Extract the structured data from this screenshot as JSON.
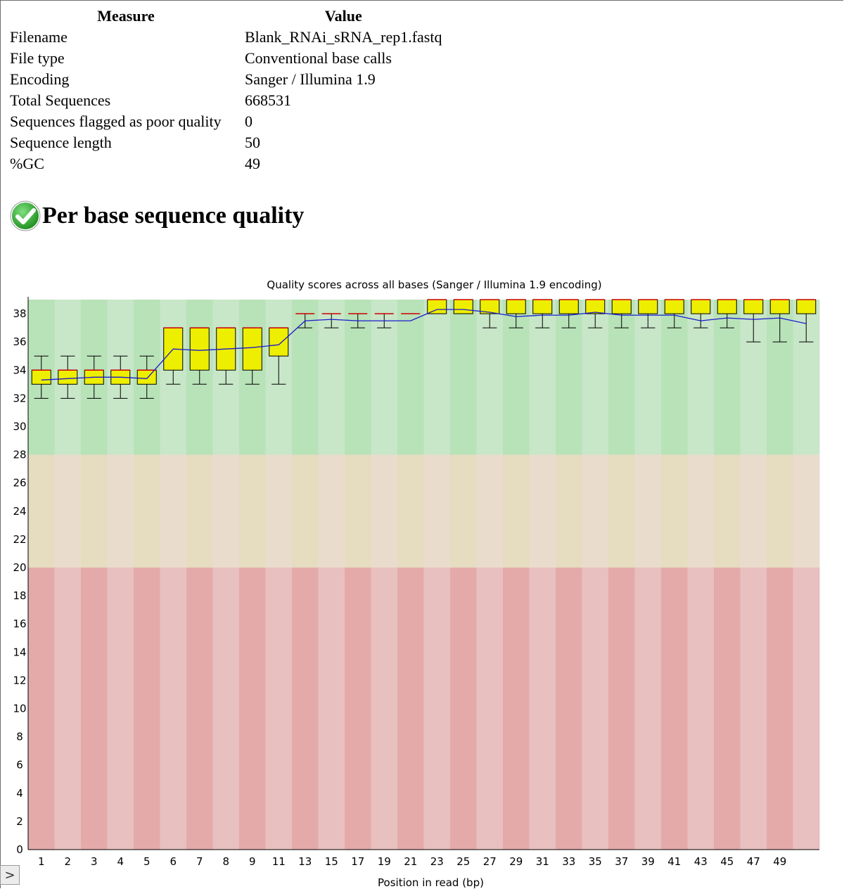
{
  "stats_table": {
    "header": {
      "measure": "Measure",
      "value": "Value"
    },
    "rows": [
      {
        "measure": "Filename",
        "value": "Blank_RNAi_sRNA_rep1.fastq"
      },
      {
        "measure": "File type",
        "value": "Conventional base calls"
      },
      {
        "measure": "Encoding",
        "value": "Sanger / Illumina 1.9"
      },
      {
        "measure": "Total Sequences",
        "value": "668531"
      },
      {
        "measure": "Sequences flagged as poor quality",
        "value": "0"
      },
      {
        "measure": "Sequence length",
        "value": "50"
      },
      {
        "measure": "%GC",
        "value": "49"
      }
    ]
  },
  "section": {
    "title": "Per base sequence quality",
    "status_icon": "check-icon",
    "status_color": "#2fa82f"
  },
  "scroll": {
    "icon": "chevron-right-icon",
    "glyph": ">"
  },
  "chart_data": {
    "type": "boxplot",
    "title": "Quality scores across all bases (Sanger / Illumina 1.9 encoding)",
    "xlabel": "Position in read (bp)",
    "ylabel": "",
    "ylim": [
      0,
      39
    ],
    "yticks": [
      0,
      2,
      4,
      6,
      8,
      10,
      12,
      14,
      16,
      18,
      20,
      22,
      24,
      26,
      28,
      30,
      32,
      34,
      36,
      38
    ],
    "xtick_labels": [
      "1",
      "2",
      "3",
      "4",
      "5",
      "6",
      "7",
      "8",
      "9",
      "11",
      "13",
      "15",
      "17",
      "19",
      "21",
      "23",
      "25",
      "27",
      "29",
      "31",
      "33",
      "35",
      "37",
      "39",
      "41",
      "43",
      "45",
      "47",
      "49"
    ],
    "positions": [
      "1",
      "2",
      "3",
      "4",
      "5",
      "6",
      "7",
      "8",
      "9",
      "10-11",
      "12-13",
      "14-15",
      "16-17",
      "18-19",
      "20-21",
      "22-23",
      "24-25",
      "26-27",
      "28-29",
      "30-31",
      "32-33",
      "34-35",
      "36-37",
      "38-39",
      "40-41",
      "42-43",
      "44-45",
      "46-47",
      "48-49",
      "50"
    ],
    "q1": [
      33,
      33,
      33,
      33,
      33,
      34,
      34,
      34,
      34,
      35,
      38,
      38,
      38,
      38,
      38,
      38,
      38,
      38,
      38,
      38,
      38,
      38,
      38,
      38,
      38,
      38,
      38,
      38,
      38,
      38
    ],
    "median": [
      34,
      34,
      34,
      34,
      34,
      37,
      37,
      37,
      37,
      37,
      38,
      38,
      38,
      38,
      38,
      39,
      39,
      39,
      39,
      39,
      39,
      39,
      39,
      39,
      39,
      39,
      39,
      39,
      39,
      39
    ],
    "q3": [
      34,
      34,
      34,
      34,
      34,
      37,
      37,
      37,
      37,
      37,
      38,
      38,
      38,
      38,
      38,
      39,
      39,
      39,
      39,
      39,
      39,
      39,
      39,
      39,
      39,
      39,
      39,
      39,
      39,
      39
    ],
    "lower_whisker": [
      32,
      32,
      32,
      32,
      32,
      33,
      33,
      33,
      33,
      33,
      37,
      37,
      37,
      37,
      38,
      38,
      38,
      37,
      37,
      37,
      37,
      37,
      37,
      37,
      37,
      37,
      37,
      36,
      36,
      36
    ],
    "upper_whisker": [
      35,
      35,
      35,
      35,
      35,
      37,
      37,
      37,
      37,
      37,
      38,
      38,
      38,
      38,
      38,
      39,
      39,
      39,
      39,
      39,
      39,
      39,
      39,
      39,
      39,
      39,
      39,
      39,
      39,
      39
    ],
    "mean": [
      33.3,
      33.4,
      33.5,
      33.5,
      33.4,
      35.5,
      35.4,
      35.5,
      35.6,
      35.8,
      37.5,
      37.6,
      37.5,
      37.5,
      37.5,
      38.3,
      38.3,
      38.1,
      37.8,
      37.9,
      37.9,
      38.1,
      37.9,
      37.9,
      37.9,
      37.5,
      37.7,
      37.6,
      37.7,
      37.3
    ],
    "quality_bands": [
      {
        "from": 28,
        "to": 39,
        "color_a": "#b8e2b8",
        "color_b": "#c8e6c8"
      },
      {
        "from": 20,
        "to": 28,
        "color_a": "#e6dcc0",
        "color_b": "#eadccc"
      },
      {
        "from": 0,
        "to": 20,
        "color_a": "#e4aaaa",
        "color_b": "#e8c0c0"
      }
    ],
    "colors": {
      "box": "#eeee00",
      "median": "#cc0000",
      "mean": "#1a1acc",
      "whisker": "#000000"
    }
  }
}
